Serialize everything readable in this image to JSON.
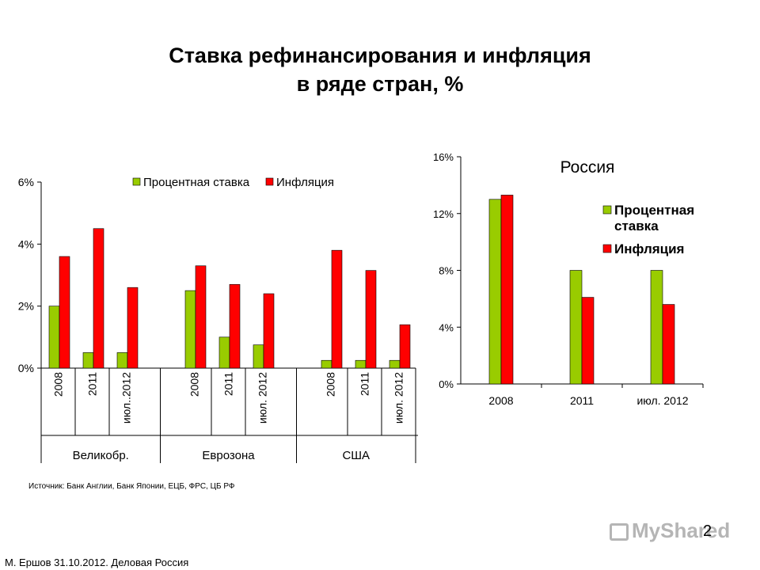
{
  "slide": {
    "title_line1": "Ставка рефинансирования и инфляция",
    "title_line2": "в ряде стран, %",
    "source": "Источник: Банк Англии, Банк Японии, ЕЦБ, ФРС, ЦБ РФ",
    "page_number": "2",
    "footer": "М. Ершов 31.10.2012. Деловая Россия",
    "watermark": "MyShared"
  },
  "colors": {
    "rate": "#99cc00",
    "inflation": "#ff0000",
    "axis": "#000000"
  },
  "chart_data": [
    {
      "type": "bar",
      "title": "",
      "legend": [
        "Процентная ставка",
        "Инфляция"
      ],
      "legend_placement": "top-right",
      "yticks": [
        "0%",
        "2%",
        "4%",
        "6%"
      ],
      "ylim": [
        0,
        6
      ],
      "groups": [
        {
          "name": "Великобр.",
          "categories": [
            "2008",
            "2011",
            "июл..2012"
          ]
        },
        {
          "name": "Еврозона",
          "categories": [
            "2008",
            "2011",
            "июл. 2012"
          ]
        },
        {
          "name": "США",
          "categories": [
            "2008",
            "2011",
            "июл. 2012"
          ]
        }
      ],
      "series": [
        {
          "name": "Процентная ставка",
          "values": [
            2.0,
            0.5,
            0.5,
            2.5,
            1.0,
            0.75,
            0.25,
            0.25,
            0.25
          ]
        },
        {
          "name": "Инфляция",
          "values": [
            3.6,
            4.5,
            2.6,
            3.3,
            2.7,
            2.4,
            3.8,
            3.15,
            1.4
          ]
        }
      ],
      "grid": false
    },
    {
      "type": "bar",
      "title": "Россия",
      "legend": [
        "Процентная\nставка",
        "Инфляция"
      ],
      "legend_placement": "right",
      "yticks": [
        "0%",
        "4%",
        "8%",
        "12%",
        "16%"
      ],
      "ylim": [
        0,
        16
      ],
      "categories": [
        "2008",
        "2011",
        "июл. 2012"
      ],
      "series": [
        {
          "name": "Процентная ставка",
          "values": [
            13.0,
            8.0,
            8.0
          ]
        },
        {
          "name": "Инфляция",
          "values": [
            13.3,
            6.1,
            5.6
          ]
        }
      ],
      "grid": false
    }
  ]
}
